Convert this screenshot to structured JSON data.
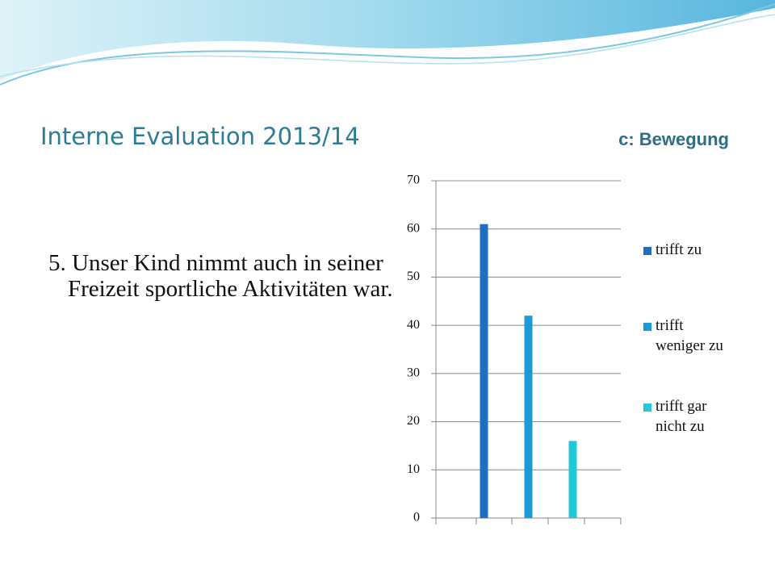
{
  "slide": {
    "title": "Interne Evaluation 2013/14",
    "subtitle": "c: Bewegung",
    "body": "5. Unser Kind nimmt auch in seiner Freizeit sportliche Aktivitäten war."
  },
  "chart_data": {
    "type": "bar",
    "categories": [
      null
    ],
    "series": [
      {
        "name": "trifft zu",
        "color": "#1f6fc0",
        "values": [
          61
        ]
      },
      {
        "name": "trifft weniger zu",
        "color": "#1b9ad6",
        "values": [
          42
        ]
      },
      {
        "name": "trifft gar nicht zu",
        "color": "#20c8d8",
        "values": [
          16
        ]
      }
    ],
    "ylim": [
      0,
      70
    ],
    "yticks": [
      0,
      10,
      20,
      30,
      40,
      50,
      60,
      70
    ],
    "grid": true,
    "legend": "right"
  }
}
